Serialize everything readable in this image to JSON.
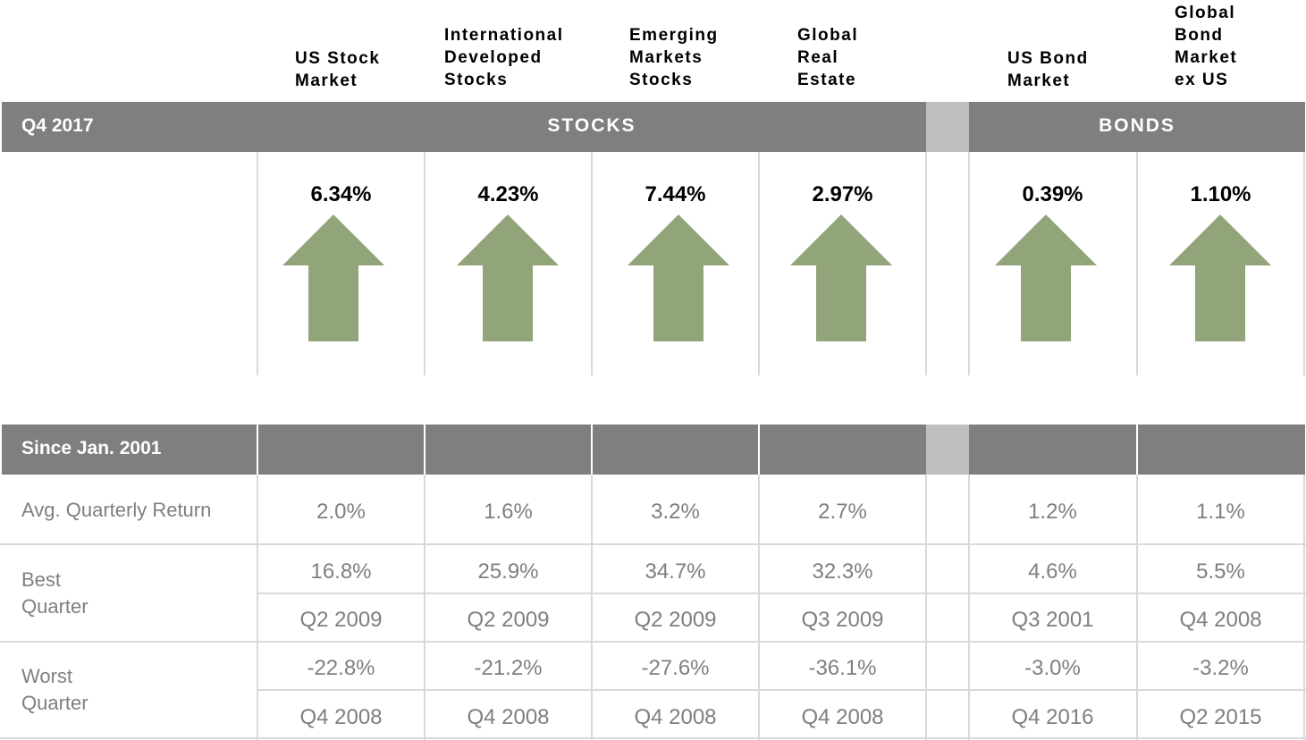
{
  "header": {
    "columns": [
      {
        "id": "us-stock",
        "label": "US Stock\nMarket"
      },
      {
        "id": "intl-dev",
        "label": "International\nDeveloped\nStocks"
      },
      {
        "id": "emerging",
        "label": "Emerging\nMarkets\nStocks"
      },
      {
        "id": "global-re",
        "label": "Global\nReal\nEstate"
      },
      {
        "id": "us-bond",
        "label": "US Bond\nMarket"
      },
      {
        "id": "global-bond",
        "label": "Global\nBond\nMarket\nex US"
      }
    ]
  },
  "quarter_bar": {
    "period": "Q4 2017",
    "stocks_label": "STOCKS",
    "bonds_label": "BONDS"
  },
  "quarter_returns": [
    "6.34%",
    "4.23%",
    "7.44%",
    "2.97%",
    "0.39%",
    "1.10%"
  ],
  "arrow": {
    "direction": "up",
    "color": "#92a47a",
    "icon": "up-arrow-icon"
  },
  "since_bar": {
    "label": "Since Jan. 2001"
  },
  "rows": {
    "avg": {
      "label": "Avg. Quarterly Return",
      "values": [
        "2.0%",
        "1.6%",
        "3.2%",
        "2.7%",
        "1.2%",
        "1.1%"
      ]
    },
    "best": {
      "label": "Best\nQuarter",
      "values": [
        "16.8%",
        "25.9%",
        "34.7%",
        "32.3%",
        "4.6%",
        "5.5%"
      ],
      "quarters": [
        "Q2 2009",
        "Q2 2009",
        "Q2 2009",
        "Q3 2009",
        "Q3 2001",
        "Q4 2008"
      ]
    },
    "worst": {
      "label": "Worst\nQuarter",
      "values": [
        "-22.8%",
        "-21.2%",
        "-27.6%",
        "-36.1%",
        "-3.0%",
        "-3.2%"
      ],
      "quarters": [
        "Q4 2008",
        "Q4 2008",
        "Q4 2008",
        "Q4 2008",
        "Q4 2016",
        "Q2 2015"
      ]
    }
  },
  "colors": {
    "bar": "#7f7f7f",
    "gap": "#bfbfbf",
    "text_muted": "#7f7f7f",
    "arrow": "#92a47a"
  }
}
